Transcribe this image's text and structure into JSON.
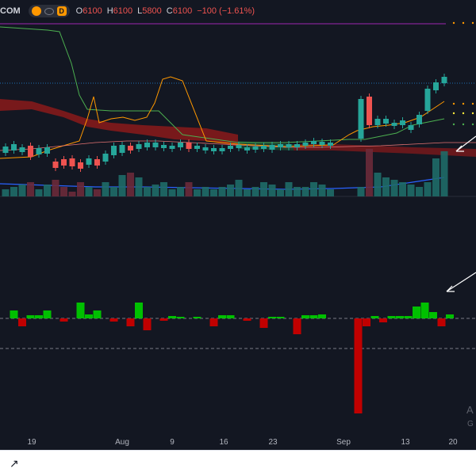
{
  "legend": {
    "symbol": "COM",
    "badge": "D",
    "open_label": "O",
    "open": "6100",
    "high_label": "H",
    "high": "6100",
    "low_label": "L",
    "low": "5800",
    "close_label": "C",
    "close": "6100",
    "change": "−100 (−1.61%)"
  },
  "x_axis": {
    "ticks": [
      "19",
      "Aug",
      "9",
      "16",
      "23",
      "Sep",
      "13",
      "20"
    ]
  },
  "watermark": {
    "line1": "A",
    "line2": "G"
  },
  "footer": {
    "icon": "↗"
  },
  "colors": {
    "background": "#131722",
    "up": "#26a69a",
    "down": "#ef5350",
    "osc_up": "#00c000",
    "osc_down": "#c00000",
    "cloud_bear": "#8b1a1a",
    "cloud_bull": "#1b5e3a",
    "ma_green": "#4caf50",
    "ma_orange": "#ff9800",
    "ma_blue": "#2962ff",
    "purple_line": "#9c27b0",
    "arrow": "#ffffff"
  },
  "chart_data": [
    {
      "type": "candlestick",
      "subtype": "price with Ichimoku cloud, moving averages and volume",
      "ichimoku_cloud": true,
      "candles": [
        {
          "dir": "up"
        },
        {
          "dir": "up"
        },
        {
          "dir": "up"
        },
        {
          "dir": "down"
        },
        {
          "dir": "up"
        },
        {
          "dir": "up"
        },
        {
          "dir": "down"
        },
        {
          "dir": "down"
        },
        {
          "dir": "down"
        },
        {
          "dir": "down"
        },
        {
          "dir": "up"
        },
        {
          "dir": "down"
        },
        {
          "dir": "up"
        },
        {
          "dir": "up"
        },
        {
          "dir": "up"
        },
        {
          "dir": "down"
        },
        {
          "dir": "up"
        },
        {
          "dir": "up"
        },
        {
          "dir": "up"
        },
        {
          "dir": "up"
        },
        {
          "dir": "up"
        },
        {
          "dir": "up"
        },
        {
          "dir": "down"
        },
        {
          "dir": "up"
        },
        {
          "dir": "up"
        },
        {
          "dir": "up"
        },
        {
          "dir": "up"
        },
        {
          "dir": "up"
        },
        {
          "dir": "up"
        },
        {
          "dir": "up"
        },
        {
          "dir": "up"
        },
        {
          "dir": "up"
        },
        {
          "dir": "up"
        },
        {
          "dir": "up"
        },
        {
          "dir": "up"
        },
        {
          "dir": "up"
        },
        {
          "dir": "up"
        },
        {
          "dir": "up"
        },
        {
          "dir": "up"
        },
        {
          "dir": "up"
        },
        {
          "dir": "up"
        },
        {
          "dir": "down"
        },
        {
          "dir": "up"
        },
        {
          "dir": "up"
        },
        {
          "dir": "up"
        },
        {
          "dir": "up"
        },
        {
          "dir": "up"
        },
        {
          "dir": "up"
        },
        {
          "dir": "up"
        },
        {
          "dir": "up"
        },
        {
          "dir": "up"
        },
        {
          "dir": "up"
        },
        {
          "dir": "up"
        },
        {
          "dir": "up"
        }
      ],
      "volume_relative": [
        0.15,
        0.2,
        0.25,
        0.3,
        0.15,
        0.25,
        0.35,
        0.2,
        0.1,
        0.3,
        0.2,
        0.15,
        0.3,
        0.2,
        0.45,
        0.5,
        0.4,
        0.2,
        0.25,
        0.3,
        0.15,
        0.2,
        0.3,
        0.15,
        0.2,
        0.15,
        0.2,
        0.25,
        0.35,
        0.15,
        0.2,
        0.3,
        0.25,
        0.15,
        0.3,
        0.2,
        0.2,
        0.3,
        0.25,
        0.15,
        0.2,
        1.0,
        0.5,
        0.4,
        0.35,
        0.3,
        0.25,
        0.2,
        0.3,
        0.8,
        0.95,
        1.0,
        0.9,
        0.6
      ]
    },
    {
      "type": "bar",
      "subtype": "oscillator histogram",
      "values": [
        0,
        1.0,
        -1.0,
        0.4,
        0.4,
        1.0,
        0,
        -0.4,
        0,
        2.0,
        0.5,
        1.0,
        0,
        -0.4,
        0,
        -1.0,
        2.0,
        -1.5,
        0,
        -0.3,
        0.3,
        0.2,
        0,
        0.2,
        0,
        -1.0,
        0.4,
        0.4,
        0,
        -0.3,
        0,
        -1.2,
        0.2,
        0.2,
        0,
        -2.0,
        0.4,
        0.4,
        0.5,
        -12.0,
        -1.0,
        0.3,
        -0.5,
        0.3,
        0.3,
        0.3,
        1.5,
        2.0,
        0.8,
        -1.0,
        0.5,
        0.5,
        0.4
      ]
    }
  ]
}
